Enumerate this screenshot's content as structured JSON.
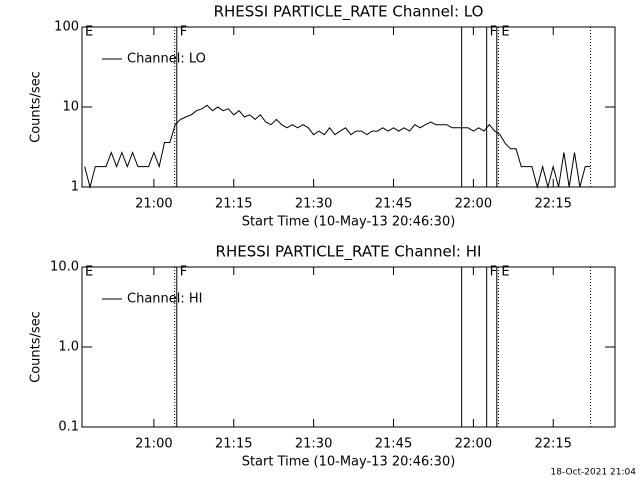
{
  "chart_data": [
    {
      "type": "line",
      "title": "RHESSI PARTICLE_RATE Channel: LO",
      "xlabel": "Start Time (10-May-13 20:46:30)",
      "ylabel": "Counts/sec",
      "log_scale": true,
      "legend": "upper left",
      "xlim": [
        1246.5,
        1346.6
      ],
      "ylim": [
        1,
        100
      ],
      "xticks": [
        {
          "value": 1260,
          "label": "21:00"
        },
        {
          "value": 1275,
          "label": "21:15"
        },
        {
          "value": 1290,
          "label": "21:30"
        },
        {
          "value": 1305,
          "label": "21:45"
        },
        {
          "value": 1320,
          "label": "22:00"
        },
        {
          "value": 1335,
          "label": "22:15"
        }
      ],
      "yticks": [
        1,
        10,
        100
      ],
      "x": [
        1247,
        1248,
        1249,
        1250,
        1251,
        1252,
        1253,
        1254,
        1255,
        1256,
        1257,
        1258,
        1259,
        1260,
        1261,
        1262,
        1263,
        1264,
        1265,
        1266,
        1267,
        1268,
        1269,
        1270,
        1271,
        1272,
        1273,
        1274,
        1275,
        1276,
        1277,
        1278,
        1279,
        1280,
        1281,
        1282,
        1283,
        1284,
        1285,
        1286,
        1287,
        1288,
        1289,
        1290,
        1291,
        1292,
        1293,
        1294,
        1295,
        1296,
        1297,
        1298,
        1299,
        1300,
        1301,
        1302,
        1303,
        1304,
        1305,
        1306,
        1307,
        1308,
        1309,
        1310,
        1311,
        1312,
        1313,
        1314,
        1315,
        1316,
        1317,
        1318,
        1319,
        1320,
        1321,
        1322,
        1323,
        1324,
        1325,
        1326,
        1327,
        1328,
        1329,
        1330,
        1331,
        1332,
        1333,
        1334,
        1335,
        1336,
        1337,
        1338,
        1339,
        1340,
        1341,
        1342
      ],
      "series": [
        {
          "name": "Channel: LO",
          "color": "#000000",
          "values": [
            1.8,
            1.0,
            1.8,
            1.8,
            1.8,
            2.7,
            1.8,
            2.7,
            1.8,
            2.7,
            1.8,
            1.8,
            1.8,
            2.7,
            1.8,
            3.6,
            3.6,
            6.0,
            7,
            7.5,
            8,
            9,
            9.5,
            10.5,
            9,
            10,
            9,
            9.5,
            8,
            9,
            7.5,
            8,
            7,
            8,
            6.5,
            6,
            7,
            6,
            5.5,
            6,
            5.5,
            6,
            5.5,
            4.5,
            5,
            4.5,
            5.5,
            4.5,
            5,
            5.5,
            4.5,
            5,
            5,
            4.5,
            5,
            5,
            5.5,
            5,
            5.5,
            5,
            5.5,
            5,
            6,
            5.5,
            6,
            6.5,
            6,
            6,
            6,
            5.5,
            5.5,
            5.5,
            5.5,
            5,
            5.5,
            5,
            6,
            5,
            4.5,
            3.5,
            3,
            3,
            1.8,
            1.8,
            1.8,
            1.0,
            1.8,
            1.0,
            1.8,
            1.0,
            2.7,
            1.0,
            2.7,
            1.0,
            1.8,
            1.8
          ]
        }
      ],
      "vlines": [
        {
          "x": 1263.9,
          "style": "dotted"
        },
        {
          "x": 1264.3,
          "style": "solid"
        },
        {
          "x": 1317.8,
          "style": "solid"
        },
        {
          "x": 1322.5,
          "style": "solid"
        },
        {
          "x": 1324.4,
          "style": "solid"
        },
        {
          "x": 1324.7,
          "style": "dotted"
        },
        {
          "x": 1342.0,
          "style": "dotted"
        }
      ],
      "annotations": [
        {
          "text": "E",
          "x": 1246.5
        },
        {
          "text": "F",
          "x": 1264.3
        },
        {
          "text": "F",
          "x": 1322.5
        },
        {
          "text": "E",
          "x": 1324.7
        }
      ]
    },
    {
      "type": "line",
      "title": "RHESSI PARTICLE_RATE Channel: HI",
      "xlabel": "Start Time (10-May-13 20:46:30)",
      "ylabel": "Counts/sec",
      "log_scale": true,
      "legend": "upper left",
      "xlim": [
        1246.5,
        1346.6
      ],
      "ylim": [
        0.1,
        10
      ],
      "xticks": [
        {
          "value": 1260,
          "label": "21:00"
        },
        {
          "value": 1275,
          "label": "21:15"
        },
        {
          "value": 1290,
          "label": "21:30"
        },
        {
          "value": 1305,
          "label": "21:45"
        },
        {
          "value": 1320,
          "label": "22:00"
        },
        {
          "value": 1335,
          "label": "22:15"
        }
      ],
      "yticks": [
        0.1,
        {
          "value": 1,
          "label": "1.0"
        },
        {
          "value": 10,
          "label": "10.0"
        }
      ],
      "x": [],
      "series": [
        {
          "name": "Channel: HI",
          "color": "#000000",
          "values": []
        }
      ],
      "vlines": [
        {
          "x": 1263.9,
          "style": "dotted"
        },
        {
          "x": 1264.3,
          "style": "solid"
        },
        {
          "x": 1317.8,
          "style": "solid"
        },
        {
          "x": 1322.5,
          "style": "solid"
        },
        {
          "x": 1324.4,
          "style": "solid"
        },
        {
          "x": 1324.7,
          "style": "dotted"
        },
        {
          "x": 1342.0,
          "style": "dotted"
        }
      ],
      "annotations": [
        {
          "text": "E",
          "x": 1246.5
        },
        {
          "text": "F",
          "x": 1264.3
        },
        {
          "text": "F",
          "x": 1322.5
        },
        {
          "text": "E",
          "x": 1324.7
        }
      ]
    }
  ],
  "timestamp": "18-Oct-2021 21:04"
}
